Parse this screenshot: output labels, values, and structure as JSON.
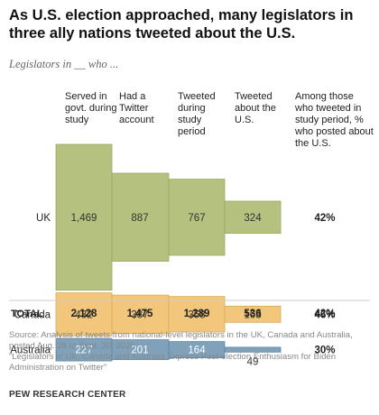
{
  "title": "As U.S. election approached, many legislators in three ally nations tweeted about the U.S.",
  "subtitle": "Legislators in __ who ...",
  "colors": {
    "UK": "#b5c17e",
    "UK_edge": "#9aa862",
    "Canada": "#f2c77c",
    "Canada_edge": "#dba955",
    "Australia": "#7fa1ba",
    "Australia_edge": "#6384a0",
    "value_text": "#333333",
    "australia_text": "#ffffff"
  },
  "chart_data": {
    "type": "table",
    "columns": [
      "Served in govt. during study",
      "Had a Twitter account",
      "Tweeted during study period",
      "Tweeted about the U.S."
    ],
    "share_column": "Among those who tweeted in study period, % who posted about the U.S.",
    "rows": [
      {
        "label": "UK",
        "values": [
          1469,
          887,
          767,
          324
        ],
        "display": [
          "1,469",
          "887",
          "767",
          "324"
        ],
        "share": "42%"
      },
      {
        "label": "Canada",
        "values": [
          432,
          387,
          358,
          163
        ],
        "display": [
          "432",
          "387",
          "358",
          "163"
        ],
        "share": "46%"
      },
      {
        "label": "Australia",
        "values": [
          227,
          201,
          164,
          49
        ],
        "display": [
          "227",
          "201",
          "164",
          "49"
        ],
        "share": "30%"
      }
    ],
    "total": {
      "label": "TOTAL",
      "display": [
        "2,128",
        "1,475",
        "1,289",
        "536"
      ],
      "share": "42%"
    }
  },
  "notes": [
    "Source: Analysis of tweets from national-level legislators in the UK, Canada and Australia, posted Aug. 28 to Sept. 30, 2020.",
    "“Legislators in UK, Canada and Australia Express Post-election Enthusiasm for Biden Administration on Twitter”"
  ],
  "brand": "PEW RESEARCH CENTER"
}
